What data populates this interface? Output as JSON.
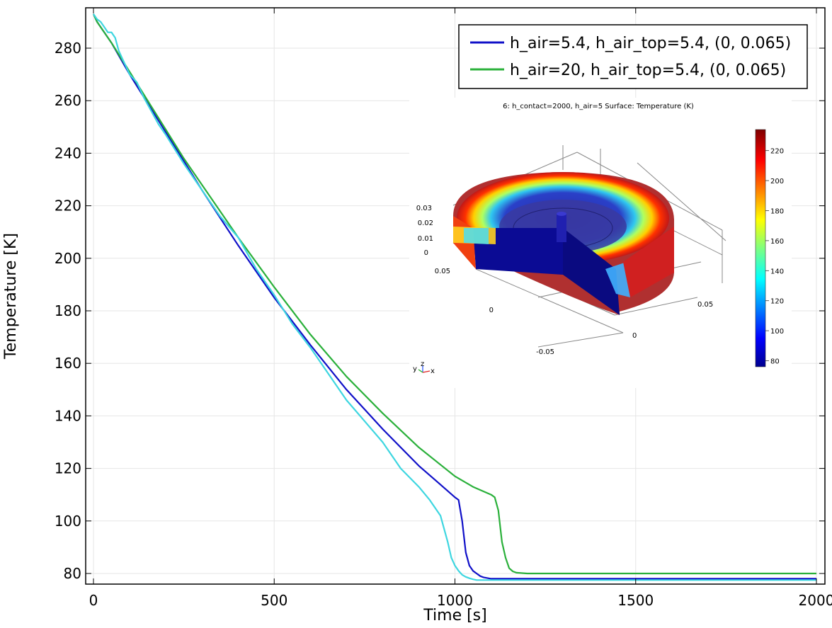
{
  "chart_data": {
    "type": "line",
    "xlabel": "Time [s]",
    "ylabel": "Temperature [K]",
    "xlim": [
      0,
      2000
    ],
    "ylim": [
      77,
      293
    ],
    "grid": true,
    "x_ticks": [
      0,
      500,
      1000,
      1500,
      2000
    ],
    "y_ticks": [
      80,
      100,
      120,
      140,
      160,
      180,
      200,
      220,
      240,
      260,
      280
    ],
    "legend_position": "top-right",
    "series": [
      {
        "name": "h_air=5.4, h_air_top=5.4, (0, 0.065)",
        "color": "#1010c8",
        "x": [
          0,
          10,
          50,
          100,
          150,
          200,
          250,
          300,
          400,
          500,
          600,
          700,
          800,
          900,
          950,
          1000,
          1010,
          1020,
          1030,
          1040,
          1050,
          1060,
          1070,
          1080,
          1100,
          1150,
          1200,
          1500,
          2000
        ],
        "y": [
          293,
          290,
          282,
          270,
          259,
          248,
          237,
          226,
          205,
          185,
          167,
          150,
          135,
          121,
          115,
          109,
          108,
          100,
          88,
          83,
          81,
          80,
          79,
          78.5,
          78,
          78,
          78,
          78,
          78
        ]
      },
      {
        "name": "h_air=20, h_air_top=5.4, (0, 0.065)",
        "color": "#2ab03a",
        "x": [
          0,
          10,
          50,
          100,
          150,
          200,
          250,
          300,
          400,
          500,
          600,
          700,
          800,
          900,
          1000,
          1050,
          1100,
          1110,
          1120,
          1130,
          1140,
          1150,
          1160,
          1170,
          1200,
          1500,
          2000
        ],
        "y": [
          293,
          290,
          282,
          271,
          260,
          249,
          238,
          228,
          208,
          189,
          171,
          155,
          141,
          128,
          117,
          113,
          110,
          109,
          104,
          92,
          86,
          82,
          80.8,
          80.3,
          80,
          80,
          80
        ]
      },
      {
        "name": "",
        "color": "#3ed6e0",
        "x": [
          0,
          10,
          20,
          30,
          40,
          50,
          60,
          70,
          80,
          100,
          120,
          140,
          160,
          180,
          200,
          250,
          300,
          350,
          400,
          450,
          500,
          550,
          600,
          650,
          700,
          750,
          800,
          850,
          900,
          930,
          960,
          980,
          990,
          1000,
          1010,
          1020,
          1030,
          1040,
          1050,
          1060,
          1100,
          1500,
          2000
        ],
        "y": [
          293,
          291,
          290,
          288,
          286,
          286,
          284,
          279,
          276,
          270,
          267,
          261,
          256,
          251,
          247,
          236,
          226,
          216,
          208,
          196,
          186,
          175,
          166,
          156,
          146,
          138,
          130,
          120,
          113,
          108,
          102,
          92,
          86,
          83,
          81,
          79.5,
          78.7,
          78.2,
          77.8,
          77.5,
          77.5,
          77.5,
          77.5
        ]
      }
    ],
    "inset": {
      "title": "6: h_contact=2000, h_air=5   Surface: Temperature (K)",
      "z_ticks": [
        "0.03",
        "0.02",
        "0.01",
        "0"
      ],
      "y_ticks": [
        "0.05",
        "0",
        "-0.05"
      ],
      "x_ticks": [
        "0",
        "0.05"
      ],
      "colorbar_ticks": [
        "220",
        "200",
        "180",
        "160",
        "140",
        "120",
        "100",
        "80"
      ],
      "triad_labels": [
        "y",
        "z",
        "x"
      ]
    }
  }
}
